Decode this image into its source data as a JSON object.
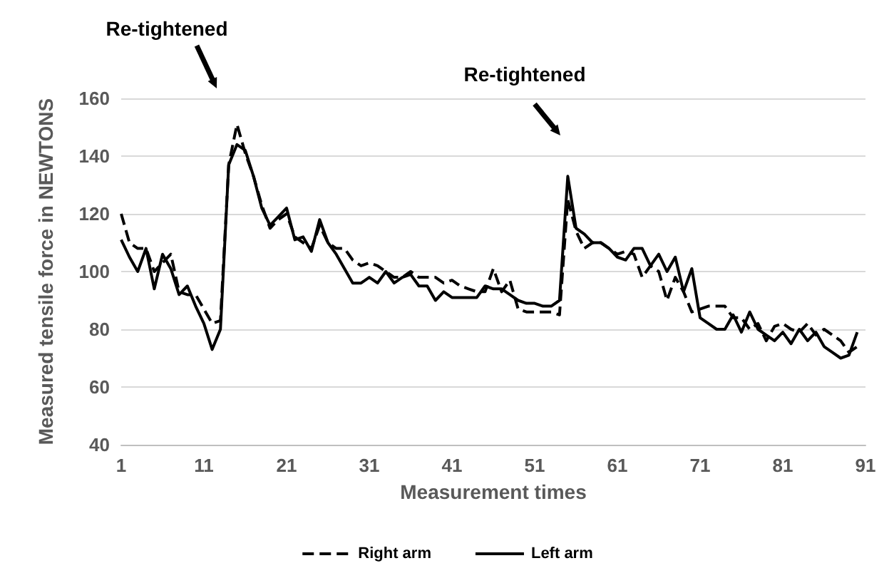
{
  "chart_data": {
    "type": "line",
    "xlabel": "Measurement times",
    "ylabel": "Measured tensile force in NEWTONS",
    "x": [
      1,
      2,
      3,
      4,
      5,
      6,
      7,
      8,
      9,
      10,
      11,
      12,
      13,
      14,
      15,
      16,
      17,
      18,
      19,
      20,
      21,
      22,
      23,
      24,
      25,
      26,
      27,
      28,
      29,
      30,
      31,
      32,
      33,
      34,
      35,
      36,
      37,
      38,
      39,
      40,
      41,
      42,
      43,
      44,
      45,
      46,
      47,
      48,
      49,
      50,
      51,
      52,
      53,
      54,
      55,
      56,
      57,
      58,
      59,
      60,
      61,
      62,
      63,
      64,
      65,
      66,
      67,
      68,
      69,
      70,
      71,
      72,
      73,
      74,
      75,
      76,
      77,
      78,
      79,
      80,
      81,
      82,
      83,
      84,
      85,
      86,
      87,
      88,
      89,
      90
    ],
    "series": [
      {
        "name": "Right arm",
        "color": "#000000",
        "line_style": "dashed",
        "values": [
          120,
          110,
          108,
          108,
          100,
          103,
          106,
          93,
          92,
          92,
          87,
          82,
          83,
          137,
          151,
          141,
          133,
          123,
          115,
          118,
          120,
          112,
          110,
          108,
          116,
          110,
          108,
          108,
          104,
          102,
          103,
          102,
          100,
          98,
          98,
          100,
          98,
          98,
          98,
          96,
          97,
          95,
          94,
          93,
          93,
          101,
          93,
          97,
          87,
          86,
          86,
          86,
          86,
          85,
          125,
          114,
          108,
          110,
          110,
          108,
          106,
          107,
          106,
          98,
          102,
          100,
          90,
          98,
          93,
          86,
          87,
          88,
          88,
          88,
          84,
          84,
          80,
          82,
          76,
          81,
          82,
          80,
          79,
          82,
          78,
          80,
          78,
          76,
          72,
          74
        ]
      },
      {
        "name": "Left arm",
        "color": "#000000",
        "line_style": "solid",
        "values": [
          111,
          105,
          100,
          108,
          94,
          106,
          101,
          92,
          95,
          88,
          82,
          73,
          80,
          137,
          144,
          142,
          133,
          122,
          116,
          119,
          122,
          111,
          112,
          107,
          118,
          110,
          106,
          101,
          96,
          96,
          98,
          96,
          100,
          96,
          98,
          99,
          95,
          95,
          90,
          93,
          91,
          91,
          91,
          91,
          95,
          94,
          94,
          92,
          90,
          89,
          89,
          88,
          88,
          90,
          133,
          115,
          113,
          110,
          110,
          108,
          105,
          104,
          108,
          108,
          102,
          106,
          100,
          105,
          93,
          101,
          84,
          82,
          80,
          80,
          85,
          79,
          86,
          80,
          78,
          76,
          79,
          75,
          80,
          76,
          79,
          74,
          72,
          70,
          71,
          79
        ]
      }
    ],
    "xlim": [
      1,
      91
    ],
    "xticks": [
      1,
      11,
      21,
      31,
      41,
      51,
      61,
      71,
      81,
      91
    ],
    "ylim": [
      40,
      160
    ],
    "yticks": [
      40,
      60,
      80,
      100,
      120,
      140,
      160
    ],
    "grid": "y",
    "legend": "bottom",
    "marker": "none",
    "annotations": [
      "Re-tightened",
      "Re-tightened"
    ]
  }
}
